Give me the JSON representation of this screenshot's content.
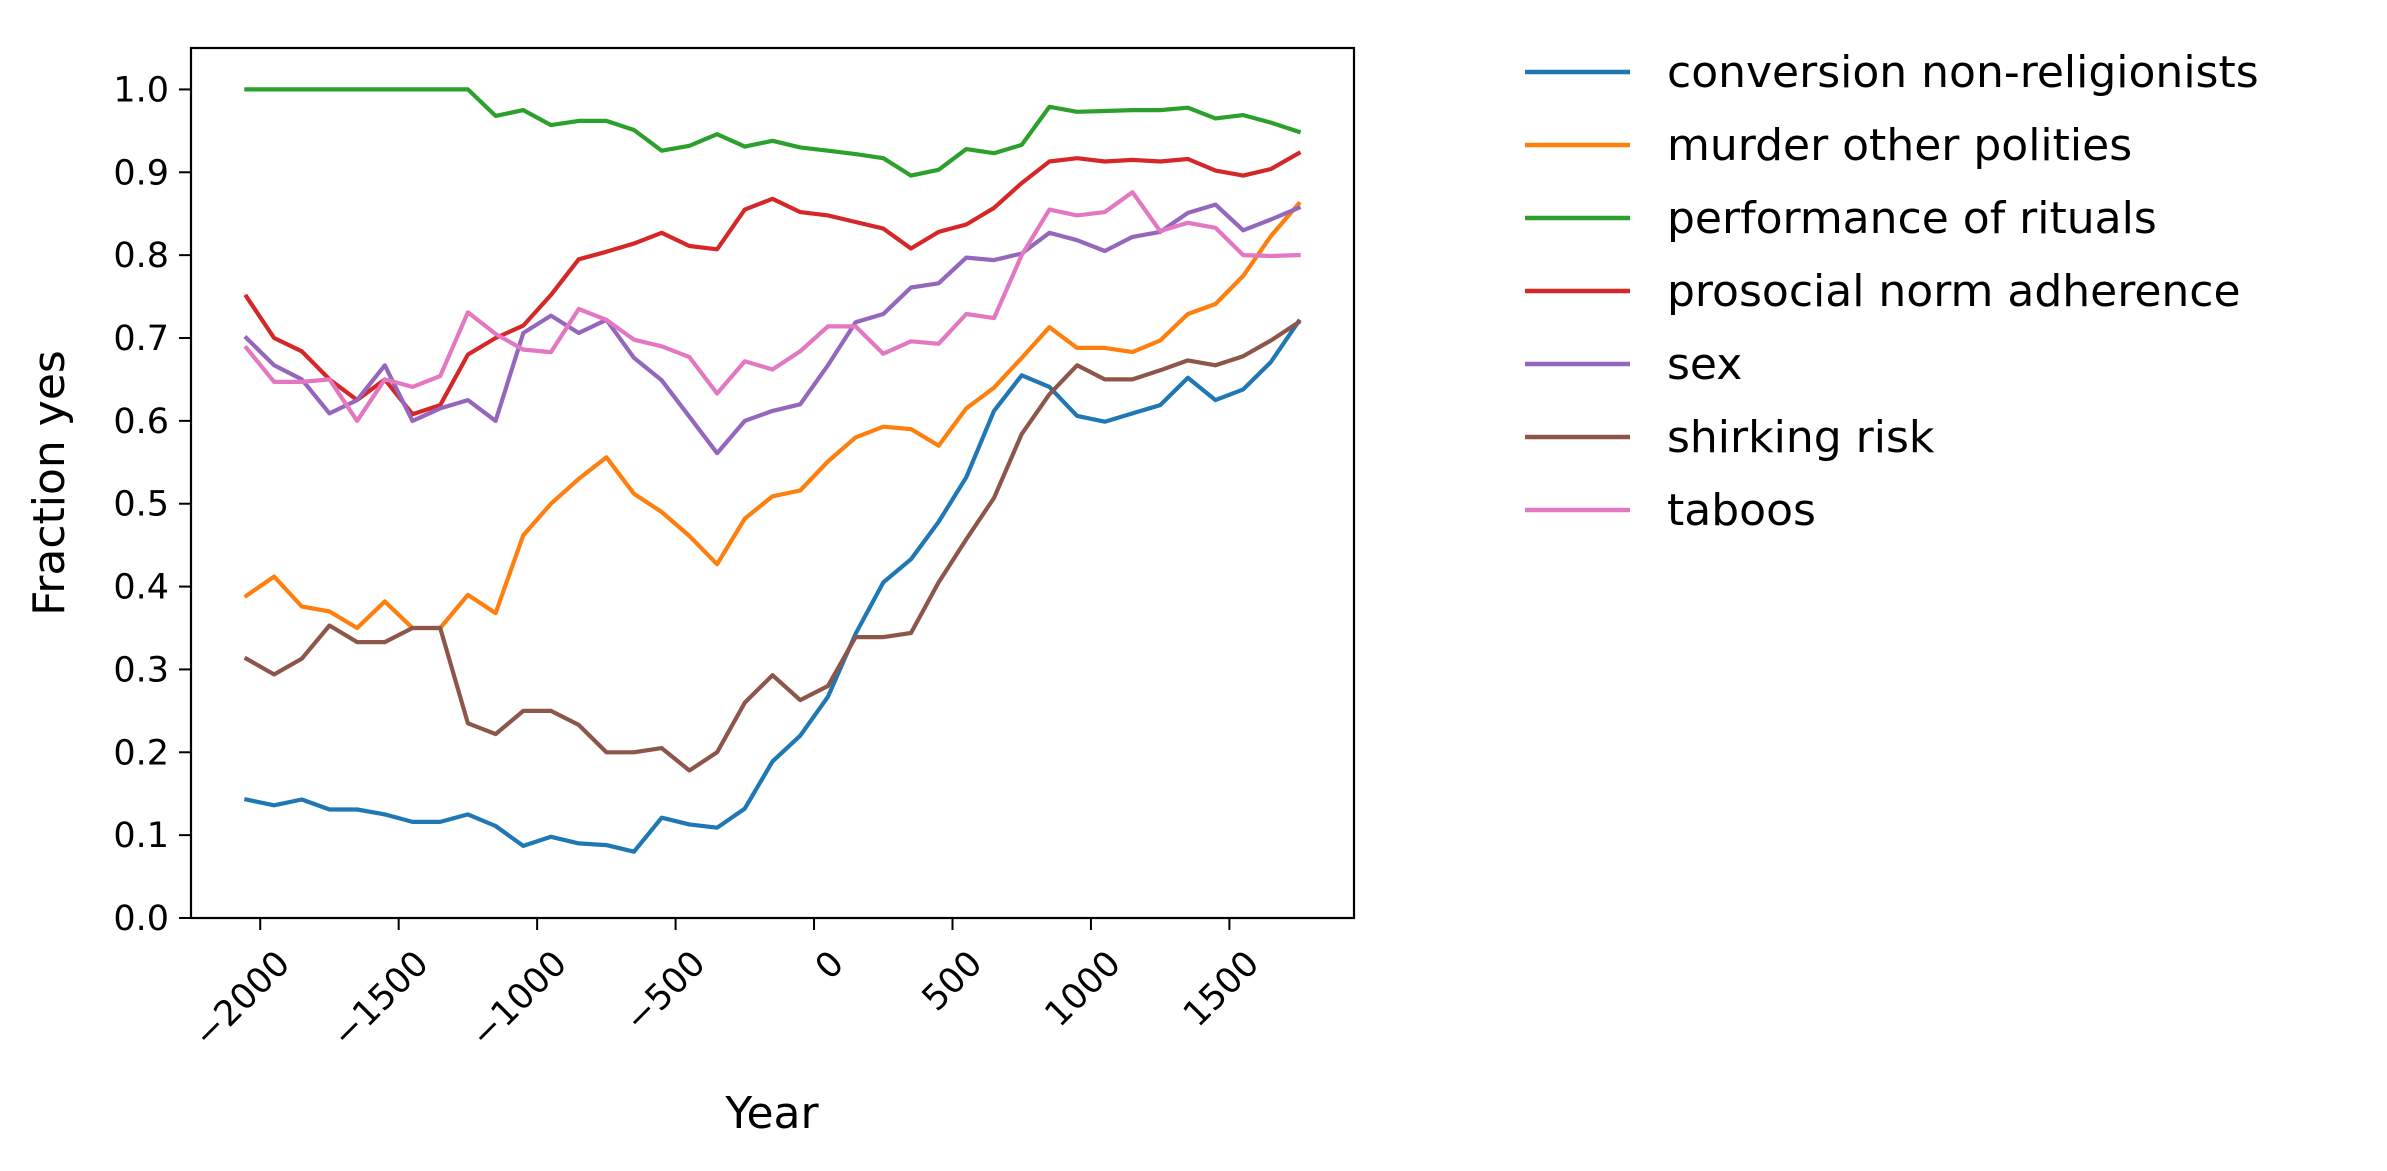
{
  "chart_data": {
    "type": "line",
    "title": "",
    "xlabel": "Year",
    "ylabel": "Fraction yes",
    "xlim": [
      -2250,
      1950
    ],
    "ylim": [
      0.0,
      1.05
    ],
    "xticks": [
      -2000,
      -1500,
      -1000,
      -500,
      0,
      500,
      1000,
      1500
    ],
    "xtick_labels": [
      "−2000",
      "−1500",
      "−1000",
      "−500",
      "0",
      "500",
      "1000",
      "1500"
    ],
    "yticks": [
      0.0,
      0.1,
      0.2,
      0.3,
      0.4,
      0.5,
      0.6,
      0.7,
      0.8,
      0.9,
      1.0
    ],
    "ytick_labels": [
      "0.0",
      "0.1",
      "0.2",
      "0.3",
      "0.4",
      "0.5",
      "0.6",
      "0.7",
      "0.8",
      "0.9",
      "1.0"
    ],
    "grid": false,
    "legend_position": "outside-right",
    "x": [
      -2050,
      -1950,
      -1850,
      -1750,
      -1650,
      -1550,
      -1450,
      -1350,
      -1250,
      -1150,
      -1050,
      -950,
      -850,
      -750,
      -650,
      -550,
      -450,
      -350,
      -250,
      -150,
      -50,
      50,
      150,
      250,
      350,
      450,
      550,
      650,
      750,
      850,
      950,
      1050,
      1150,
      1250,
      1350,
      1450,
      1550,
      1650,
      1750
    ],
    "series": [
      {
        "name": "conversion non-religionists",
        "color": "#1f77b4",
        "values": [
          0.143,
          0.136,
          0.143,
          0.131,
          0.131,
          0.125,
          0.116,
          0.116,
          0.125,
          0.111,
          0.087,
          0.098,
          0.09,
          0.088,
          0.08,
          0.121,
          0.113,
          0.109,
          0.132,
          0.189,
          0.22,
          0.267,
          0.343,
          0.405,
          0.433,
          0.478,
          0.532,
          0.612,
          0.655,
          0.641,
          0.606,
          0.599,
          0.609,
          0.619,
          0.652,
          0.625,
          0.638,
          0.671,
          0.72
        ]
      },
      {
        "name": "murder other polities",
        "color": "#ff7f0e",
        "values": [
          0.389,
          0.412,
          0.376,
          0.37,
          0.35,
          0.382,
          0.35,
          0.35,
          0.39,
          0.368,
          0.462,
          0.5,
          0.53,
          0.556,
          0.512,
          0.49,
          0.461,
          0.427,
          0.482,
          0.509,
          0.516,
          0.551,
          0.58,
          0.593,
          0.59,
          0.57,
          0.615,
          0.64,
          0.676,
          0.713,
          0.688,
          0.688,
          0.683,
          0.697,
          0.729,
          0.741,
          0.775,
          0.823,
          0.862
        ]
      },
      {
        "name": "performance of rituals",
        "color": "#2ca02c",
        "values": [
          1.0,
          1.0,
          1.0,
          1.0,
          1.0,
          1.0,
          1.0,
          1.0,
          1.0,
          0.968,
          0.975,
          0.957,
          0.962,
          0.962,
          0.951,
          0.926,
          0.932,
          0.946,
          0.931,
          0.938,
          0.93,
          0.926,
          0.922,
          0.917,
          0.896,
          0.903,
          0.928,
          0.923,
          0.933,
          0.979,
          0.973,
          0.974,
          0.975,
          0.975,
          0.978,
          0.965,
          0.969,
          0.96,
          0.949
        ]
      },
      {
        "name": "prosocial norm adherence",
        "color": "#d62728",
        "values": [
          0.75,
          0.7,
          0.684,
          0.65,
          0.625,
          0.65,
          0.608,
          0.619,
          0.68,
          0.7,
          0.715,
          0.752,
          0.795,
          0.804,
          0.814,
          0.827,
          0.811,
          0.807,
          0.855,
          0.868,
          0.852,
          0.848,
          0.84,
          0.832,
          0.808,
          0.828,
          0.837,
          0.857,
          0.887,
          0.913,
          0.917,
          0.913,
          0.915,
          0.913,
          0.916,
          0.902,
          0.896,
          0.904,
          0.923
        ]
      },
      {
        "name": "sex",
        "color": "#9467bd",
        "values": [
          0.7,
          0.667,
          0.65,
          0.609,
          0.625,
          0.667,
          0.6,
          0.615,
          0.625,
          0.6,
          0.706,
          0.727,
          0.706,
          0.722,
          0.676,
          0.649,
          0.605,
          0.561,
          0.6,
          0.612,
          0.62,
          0.667,
          0.719,
          0.729,
          0.761,
          0.766,
          0.797,
          0.794,
          0.802,
          0.827,
          0.818,
          0.805,
          0.822,
          0.828,
          0.851,
          0.861,
          0.83,
          0.843,
          0.857
        ]
      },
      {
        "name": "shirking risk",
        "color": "#8c564b",
        "values": [
          0.313,
          0.294,
          0.313,
          0.353,
          0.333,
          0.333,
          0.35,
          0.35,
          0.235,
          0.222,
          0.25,
          0.25,
          0.233,
          0.2,
          0.2,
          0.205,
          0.178,
          0.2,
          0.26,
          0.293,
          0.263,
          0.28,
          0.339,
          0.339,
          0.344,
          0.405,
          0.457,
          0.507,
          0.584,
          0.632,
          0.667,
          0.65,
          0.65,
          0.661,
          0.673,
          0.667,
          0.678,
          0.697,
          0.719
        ]
      },
      {
        "name": "taboos",
        "color": "#e377c2",
        "values": [
          0.688,
          0.647,
          0.647,
          0.65,
          0.6,
          0.65,
          0.641,
          0.654,
          0.731,
          0.705,
          0.686,
          0.683,
          0.735,
          0.722,
          0.698,
          0.69,
          0.677,
          0.633,
          0.672,
          0.662,
          0.684,
          0.714,
          0.714,
          0.681,
          0.696,
          0.693,
          0.729,
          0.724,
          0.8,
          0.855,
          0.848,
          0.852,
          0.876,
          0.829,
          0.839,
          0.833,
          0.8,
          0.799,
          0.8
        ]
      }
    ]
  }
}
